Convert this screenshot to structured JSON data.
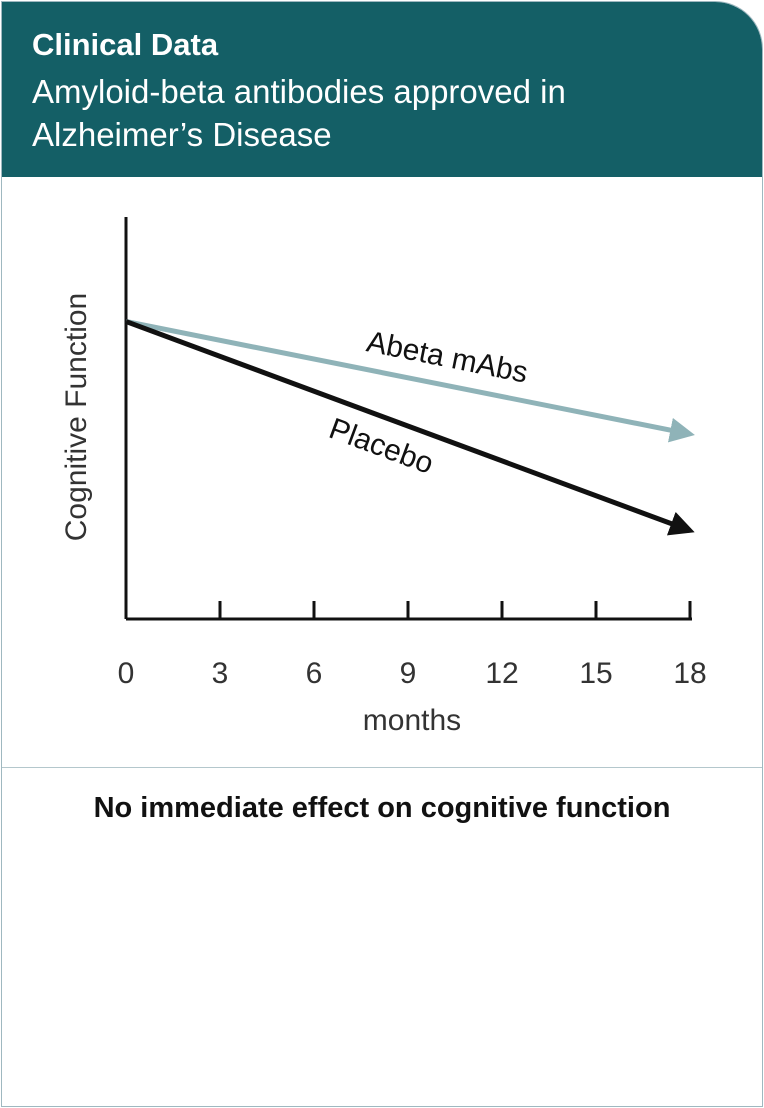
{
  "header": {
    "title": "Clinical Data",
    "subtitle": "Amyloid-beta antibodies approved in Alzheimer’s Disease"
  },
  "conclusion": "No immediate effect on cognitive function",
  "colors": {
    "header_bg": "#145f66",
    "abeta_line": "#8fb3b8",
    "placebo_line": "#111111"
  },
  "chart_data": {
    "type": "line",
    "xlabel": "months",
    "ylabel": "Cognitive Function",
    "x_ticks": [
      0,
      3,
      6,
      9,
      12,
      15,
      18
    ],
    "xlim": [
      0,
      18
    ],
    "ylim": [
      0,
      100
    ],
    "series": [
      {
        "name": "Abeta mAbs",
        "x": [
          0,
          18
        ],
        "y": [
          74,
          46
        ]
      },
      {
        "name": "Placebo",
        "x": [
          0,
          18
        ],
        "y": [
          74,
          22
        ]
      }
    ]
  }
}
